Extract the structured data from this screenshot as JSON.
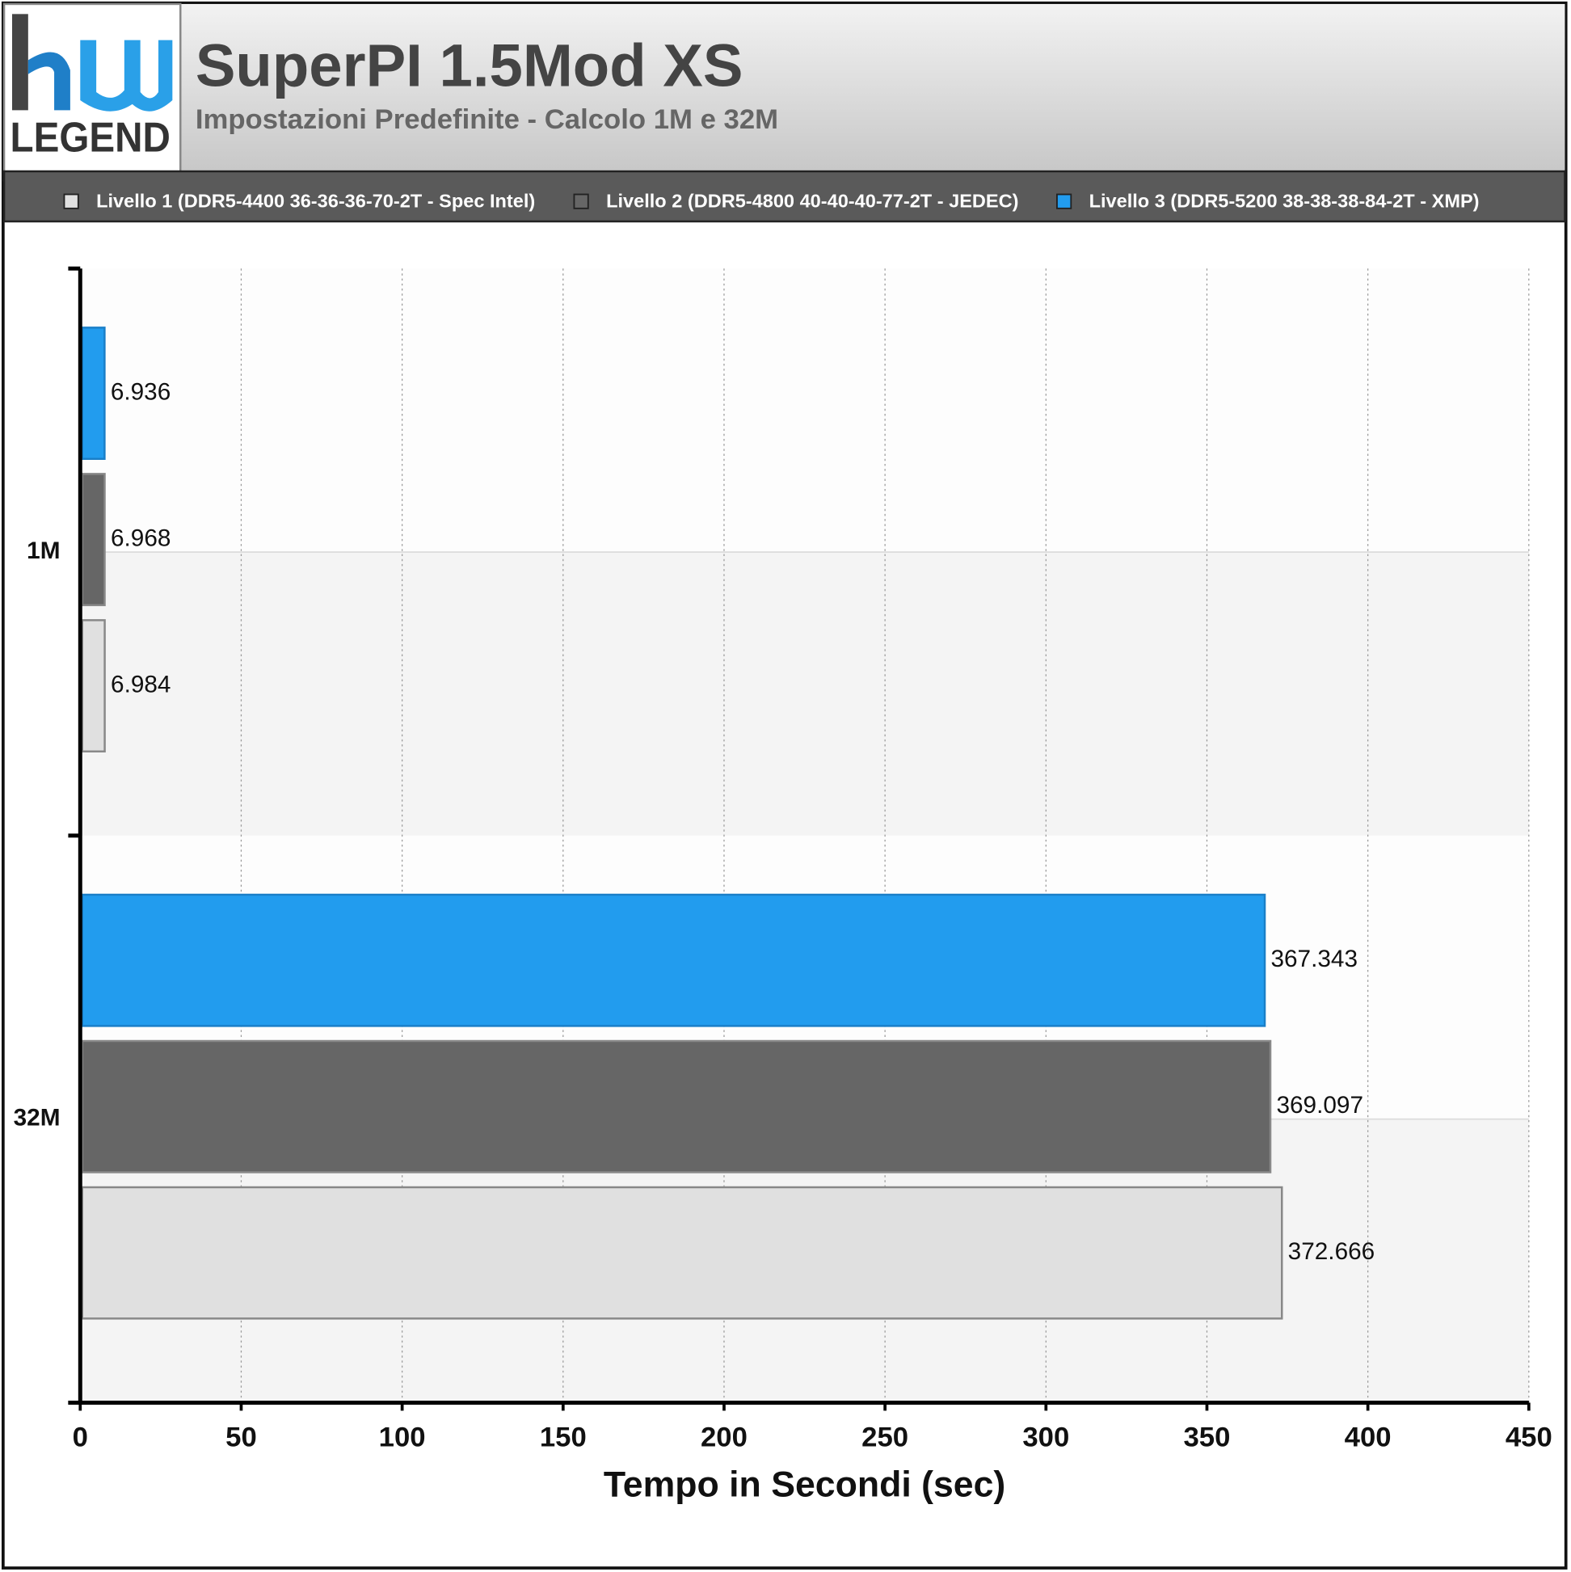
{
  "logo": "LEGEND",
  "chart_data": {
    "type": "bar",
    "orientation": "horizontal",
    "title": "SuperPI 1.5Mod XS",
    "subtitle": "Impostazioni Predefinite - Calcolo 1M e 32M",
    "x_label": "Tempo in Secondi (sec)",
    "categories": [
      "1M",
      "32M"
    ],
    "series": [
      {
        "name": "Livello 1 (DDR5-4400 36-36-36-70-2T - Spec Intel)",
        "color": "#e0e0e0",
        "values": [
          6.984,
          372.666
        ]
      },
      {
        "name": "Livello 2 (DDR5-4800 40-40-40-77-2T - JEDEC)",
        "color": "#666666",
        "values": [
          6.968,
          369.097
        ]
      },
      {
        "name": "Livello 3 (DDR5-5200 38-38-38-84-2T - XMP)",
        "color": "#229cee",
        "values": [
          6.936,
          367.343
        ]
      }
    ],
    "xlim": [
      0,
      450
    ],
    "xticks": [
      0,
      50,
      100,
      150,
      200,
      250,
      300,
      350,
      400,
      450
    ],
    "grid": true,
    "legend": "top"
  }
}
